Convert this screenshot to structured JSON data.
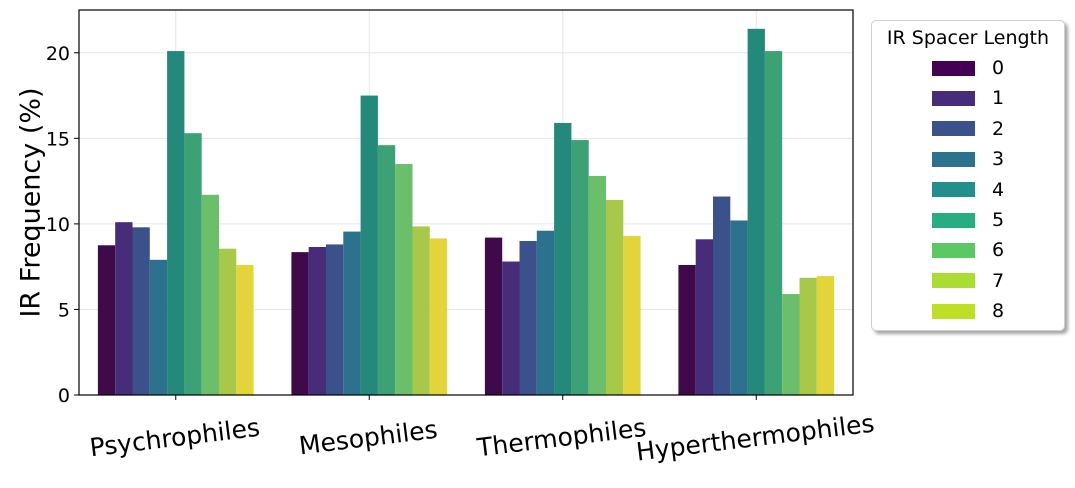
{
  "chart_data": {
    "type": "bar",
    "categories": [
      "Psychrophiles",
      "Mesophiles",
      "Thermophiles",
      "Hyperthermophiles"
    ],
    "ylabel": "IR Frequency (%)",
    "xlabel": "",
    "ylim": [
      0,
      22.5
    ],
    "yticks": [
      0,
      5,
      10,
      15,
      20
    ],
    "grid": true,
    "legend": {
      "title": "IR Spacer Length",
      "position": "outside-right",
      "labels": [
        "0",
        "1",
        "2",
        "3",
        "4",
        "5",
        "6",
        "7",
        "8"
      ]
    },
    "legend_colors": [
      "#440154",
      "#472c7a",
      "#3b518b",
      "#2c718e",
      "#21908d",
      "#27ad81",
      "#5cc863",
      "#aadc32",
      "#bddf26"
    ],
    "bar_colors": [
      [
        "#3f0a4a",
        "#472c7a",
        "#3b518b",
        "#2c718e",
        "#24887a",
        "#3ca276",
        "#6bbf6b",
        "#a8c84a",
        "#e2d43a"
      ],
      [
        "#3f0a4a",
        "#472c7a",
        "#3b518b",
        "#2c718e",
        "#24887a",
        "#3ca276",
        "#6bbf6b",
        "#a8c84a",
        "#e2d43a"
      ],
      [
        "#3f0a4a",
        "#472c7a",
        "#3b518b",
        "#2c718e",
        "#24887a",
        "#3ca276",
        "#6bbf6b",
        "#a8c84a",
        "#e2d43a"
      ],
      [
        "#3f0a4a",
        "#472c7a",
        "#3b518b",
        "#2c718e",
        "#24887a",
        "#3ca276",
        "#6bbf6b",
        "#a8c84a",
        "#e2d43a"
      ]
    ],
    "series": [
      {
        "name": "0",
        "values": [
          8.75,
          8.35,
          9.2,
          7.6
        ]
      },
      {
        "name": "1",
        "values": [
          10.1,
          8.65,
          7.8,
          9.1
        ]
      },
      {
        "name": "2",
        "values": [
          9.8,
          8.8,
          9.0,
          11.6
        ]
      },
      {
        "name": "3",
        "values": [
          7.9,
          9.55,
          9.6,
          10.2
        ]
      },
      {
        "name": "4",
        "values": [
          20.1,
          17.5,
          15.9,
          21.4
        ]
      },
      {
        "name": "5",
        "values": [
          15.3,
          14.6,
          14.9,
          20.1
        ]
      },
      {
        "name": "6",
        "values": [
          11.7,
          13.5,
          12.8,
          5.9
        ]
      },
      {
        "name": "7",
        "values": [
          8.55,
          9.85,
          11.4,
          6.85
        ]
      },
      {
        "name": "8",
        "values": [
          7.6,
          9.15,
          9.3,
          6.95
        ]
      }
    ]
  }
}
